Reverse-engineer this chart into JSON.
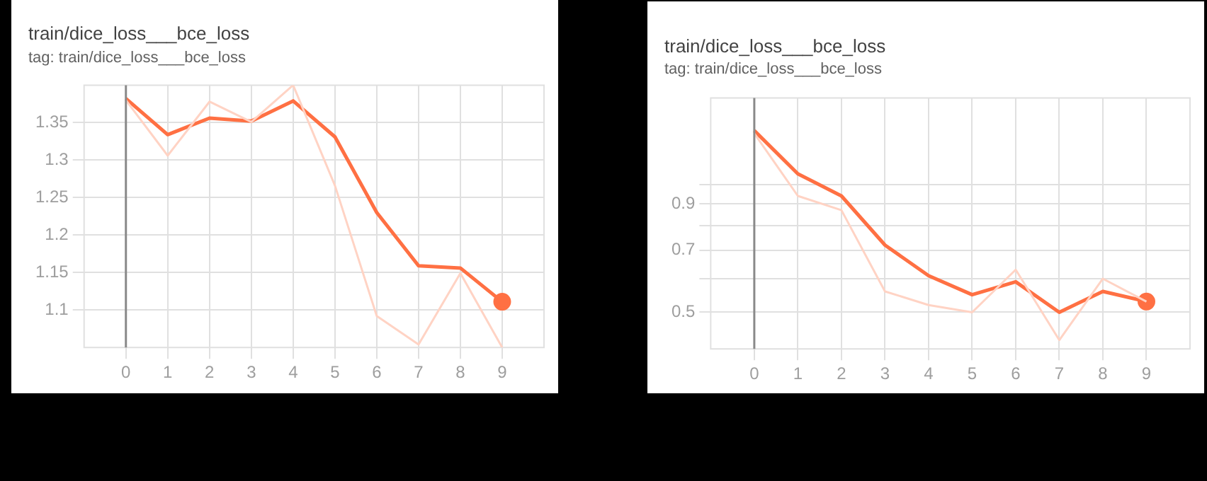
{
  "chart_data": [
    {
      "type": "line",
      "title": "train/dice_loss___bce_loss",
      "subtitle": "tag: train/dice_loss___bce_loss",
      "x": [
        0,
        1,
        2,
        3,
        4,
        5,
        6,
        7,
        8,
        9
      ],
      "series": [
        {
          "color": "#ffd3c4",
          "values": [
            1.38,
            1.306,
            1.378,
            1.351,
            1.4,
            1.266,
            1.092,
            1.054,
            1.149,
            1.05
          ]
        },
        {
          "color": "#ff7043",
          "values": [
            1.382,
            1.334,
            1.356,
            1.352,
            1.379,
            1.331,
            1.23,
            1.159,
            1.156,
            1.111
          ]
        }
      ],
      "xlim": [
        -1,
        10
      ],
      "xticks": [
        0,
        1,
        2,
        3,
        4,
        5,
        6,
        7,
        8,
        9
      ],
      "ylim": [
        1.05,
        1.4
      ],
      "yticks": [
        1.1,
        1.15,
        1.2,
        1.25,
        1.3,
        1.35
      ],
      "ref_lines": [
        {
          "axis": "x",
          "value": 0,
          "color": "#8a8a8a"
        }
      ],
      "grid": true,
      "legend": false
    },
    {
      "type": "line",
      "title": "train/dice_loss___bce_loss",
      "subtitle": "tag: train/dice_loss___bce_loss",
      "x": [
        0,
        1,
        2,
        3,
        4,
        5,
        6,
        7,
        8,
        9
      ],
      "series": [
        {
          "color": "#ffd3c4",
          "values": [
            1.32,
            0.94,
            0.87,
            0.56,
            0.52,
            0.5,
            0.63,
            0.43,
            0.6,
            0.53
          ]
        },
        {
          "color": "#ff7043",
          "values": [
            1.34,
            1.06,
            0.94,
            0.72,
            0.61,
            0.55,
            0.59,
            0.5,
            0.56,
            0.53
          ]
        }
      ],
      "xlim": [
        -1,
        10
      ],
      "xticks": [
        0,
        1,
        2,
        3,
        4,
        5,
        6,
        7,
        8,
        9
      ],
      "ylim": [
        0.41,
        1.6
      ],
      "yticks": [
        0.5,
        {
          "value": 0.6,
          "label": null
        },
        0.7,
        {
          "value": 0.8,
          "label": null
        },
        0.9,
        {
          "value": 1.0,
          "label": null
        }
      ],
      "log": "y",
      "ref_lines": [
        {
          "axis": "x",
          "value": 0,
          "color": "#8a8a8a"
        }
      ],
      "grid": true,
      "legend": false
    }
  ]
}
